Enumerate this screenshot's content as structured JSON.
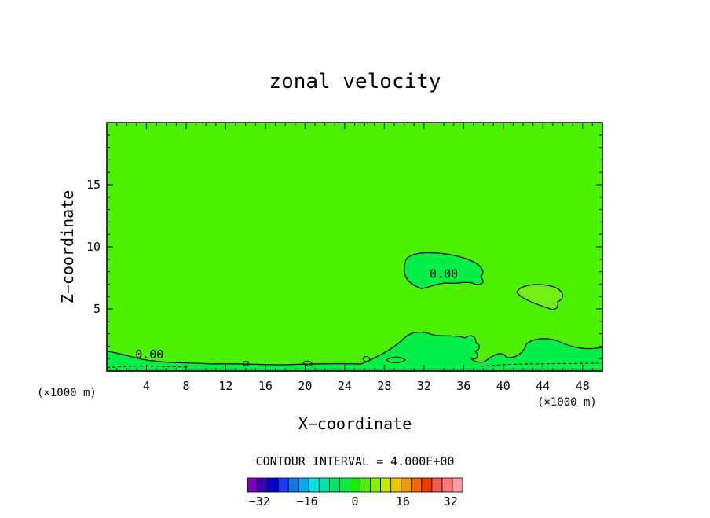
{
  "chart_data": {
    "type": "heatmap",
    "title": "zonal velocity",
    "xlabel": "X−coordinate",
    "ylabel": "Z−coordinate",
    "x_unit": "(×1000 m)",
    "y_unit": "(×1000 m)",
    "xlim": [
      0,
      50
    ],
    "ylim": [
      0,
      20
    ],
    "x_ticks": [
      4,
      8,
      12,
      16,
      20,
      24,
      28,
      32,
      36,
      40,
      44,
      48
    ],
    "y_ticks": [
      5,
      10,
      15
    ],
    "contour_interval_text": "CONTOUR INTERVAL = 4.000E+00",
    "contour_labels": [
      {
        "text": "0.00",
        "x": 34,
        "z": 7.5
      },
      {
        "text": "0.00",
        "x": 4.3,
        "z": 1.0
      }
    ],
    "background_value": 4,
    "regions": [
      {
        "name": "weak-negative-upper",
        "value": 0,
        "color": "#00ee48"
      },
      {
        "name": "weak-positive",
        "value": 8,
        "color": "#72ee16"
      },
      {
        "name": "weak-negative-lower",
        "value": 0,
        "color": "#00ee48"
      }
    ],
    "colorbar": {
      "labels": [
        "−32",
        "−16",
        "0",
        "16",
        "32"
      ],
      "label_values": [
        -32,
        -16,
        0,
        16,
        32
      ],
      "min": -36,
      "max": 36,
      "colors": [
        "#7a00b8",
        "#3a00b4",
        "#0000cc",
        "#1a3cf0",
        "#0f76f0",
        "#00aaf0",
        "#00e0e0",
        "#00e6a8",
        "#00e26a",
        "#00ee48",
        "#14f000",
        "#4cf000",
        "#8cee00",
        "#c8ea00",
        "#f0c800",
        "#f09800",
        "#f06a00",
        "#f03a00",
        "#f05a52",
        "#f57a78",
        "#fb9da0"
      ]
    }
  }
}
